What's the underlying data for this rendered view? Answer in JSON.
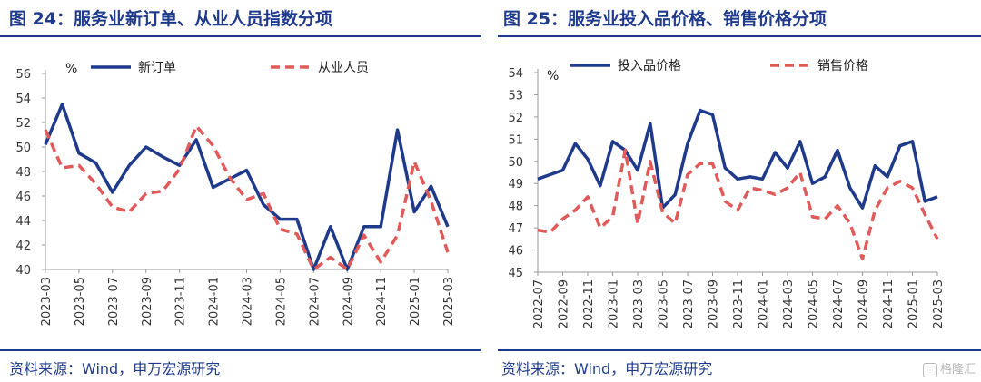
{
  "charts": [
    {
      "title": "图 24：服务业新订单、从业人员指数分项",
      "source": "资料来源：Wind，申万宏源研究",
      "chart_data": {
        "type": "line",
        "unit": "%",
        "ylim": [
          40,
          56
        ],
        "yticks": [
          40,
          42,
          44,
          46,
          48,
          50,
          52,
          54,
          56
        ],
        "x": [
          "2023-03",
          "2023-04",
          "2023-05",
          "2023-06",
          "2023-07",
          "2023-08",
          "2023-09",
          "2023-10",
          "2023-11",
          "2023-12",
          "2024-01",
          "2024-02",
          "2024-03",
          "2024-04",
          "2024-05",
          "2024-06",
          "2024-07",
          "2024-08",
          "2024-09",
          "2024-10",
          "2024-11",
          "2024-12",
          "2025-01",
          "2025-02",
          "2025-03"
        ],
        "xticks": [
          "2023-03",
          "2023-05",
          "2023-07",
          "2023-09",
          "2023-11",
          "2024-01",
          "2024-03",
          "2024-05",
          "2024-07",
          "2024-09",
          "2024-11",
          "2025-01",
          "2025-03"
        ],
        "series": [
          {
            "name": "新订单",
            "style": "solid",
            "color": "#1f3a8a",
            "values": [
              50.2,
              53.5,
              49.5,
              48.7,
              46.3,
              48.5,
              50.0,
              49.2,
              48.5,
              50.6,
              46.7,
              47.4,
              48.1,
              45.3,
              44.1,
              44.1,
              40.0,
              43.5,
              40.0,
              43.5,
              43.5,
              51.4,
              44.7,
              46.8,
              43.5
            ]
          },
          {
            "name": "从业人员",
            "style": "dashed",
            "color": "#e05a5a",
            "values": [
              51.4,
              48.3,
              48.5,
              47.0,
              45.1,
              44.7,
              46.2,
              46.4,
              48.2,
              51.7,
              50.1,
              47.5,
              45.7,
              46.2,
              43.3,
              42.9,
              40.0,
              41.0,
              40.0,
              42.8,
              40.6,
              42.8,
              48.8,
              45.6,
              41.4
            ]
          }
        ]
      }
    },
    {
      "title": "图 25：服务业投入品价格、销售价格分项",
      "source": "资料来源：Wind，申万宏源研究",
      "chart_data": {
        "type": "line",
        "unit": "%",
        "ylim": [
          45,
          54
        ],
        "yticks": [
          45,
          46,
          47,
          48,
          49,
          50,
          51,
          52,
          53,
          54
        ],
        "x": [
          "2022-07",
          "2022-08",
          "2022-09",
          "2022-10",
          "2022-11",
          "2022-12",
          "2023-01",
          "2023-02",
          "2023-03",
          "2023-04",
          "2023-05",
          "2023-06",
          "2023-07",
          "2023-08",
          "2023-09",
          "2023-10",
          "2023-11",
          "2023-12",
          "2024-01",
          "2024-02",
          "2024-03",
          "2024-04",
          "2024-05",
          "2024-06",
          "2024-07",
          "2024-08",
          "2024-09",
          "2024-10",
          "2024-11",
          "2024-12",
          "2025-01",
          "2025-02",
          "2025-03"
        ],
        "xticks": [
          "2022-07",
          "2022-09",
          "2022-11",
          "2023-01",
          "2023-03",
          "2023-05",
          "2023-07",
          "2023-09",
          "2023-11",
          "2024-01",
          "2024-03",
          "2024-05",
          "2024-07",
          "2024-09",
          "2024-11",
          "2025-01",
          "2025-03"
        ],
        "series": [
          {
            "name": "投入品价格",
            "style": "solid",
            "color": "#1f3a8a",
            "values": [
              49.2,
              49.4,
              49.6,
              50.8,
              50.1,
              48.9,
              50.9,
              50.5,
              49.6,
              51.7,
              47.9,
              48.5,
              50.8,
              52.3,
              52.1,
              49.7,
              49.2,
              49.3,
              49.2,
              50.4,
              49.7,
              50.9,
              49.0,
              49.3,
              50.5,
              48.8,
              47.9,
              49.8,
              49.3,
              50.7,
              50.9,
              48.2,
              48.4
            ]
          },
          {
            "name": "销售价格",
            "style": "dashed",
            "color": "#e05a5a",
            "values": [
              46.9,
              46.8,
              47.4,
              47.8,
              48.4,
              47.0,
              47.5,
              50.5,
              47.2,
              50.0,
              47.7,
              47.2,
              49.4,
              49.9,
              49.9,
              48.2,
              47.8,
              48.8,
              48.7,
              48.5,
              48.8,
              49.5,
              47.5,
              47.4,
              48.0,
              47.2,
              45.6,
              47.8,
              48.8,
              49.1,
              48.8,
              47.6,
              46.5
            ]
          }
        ]
      }
    }
  ],
  "watermark": "格隆汇"
}
